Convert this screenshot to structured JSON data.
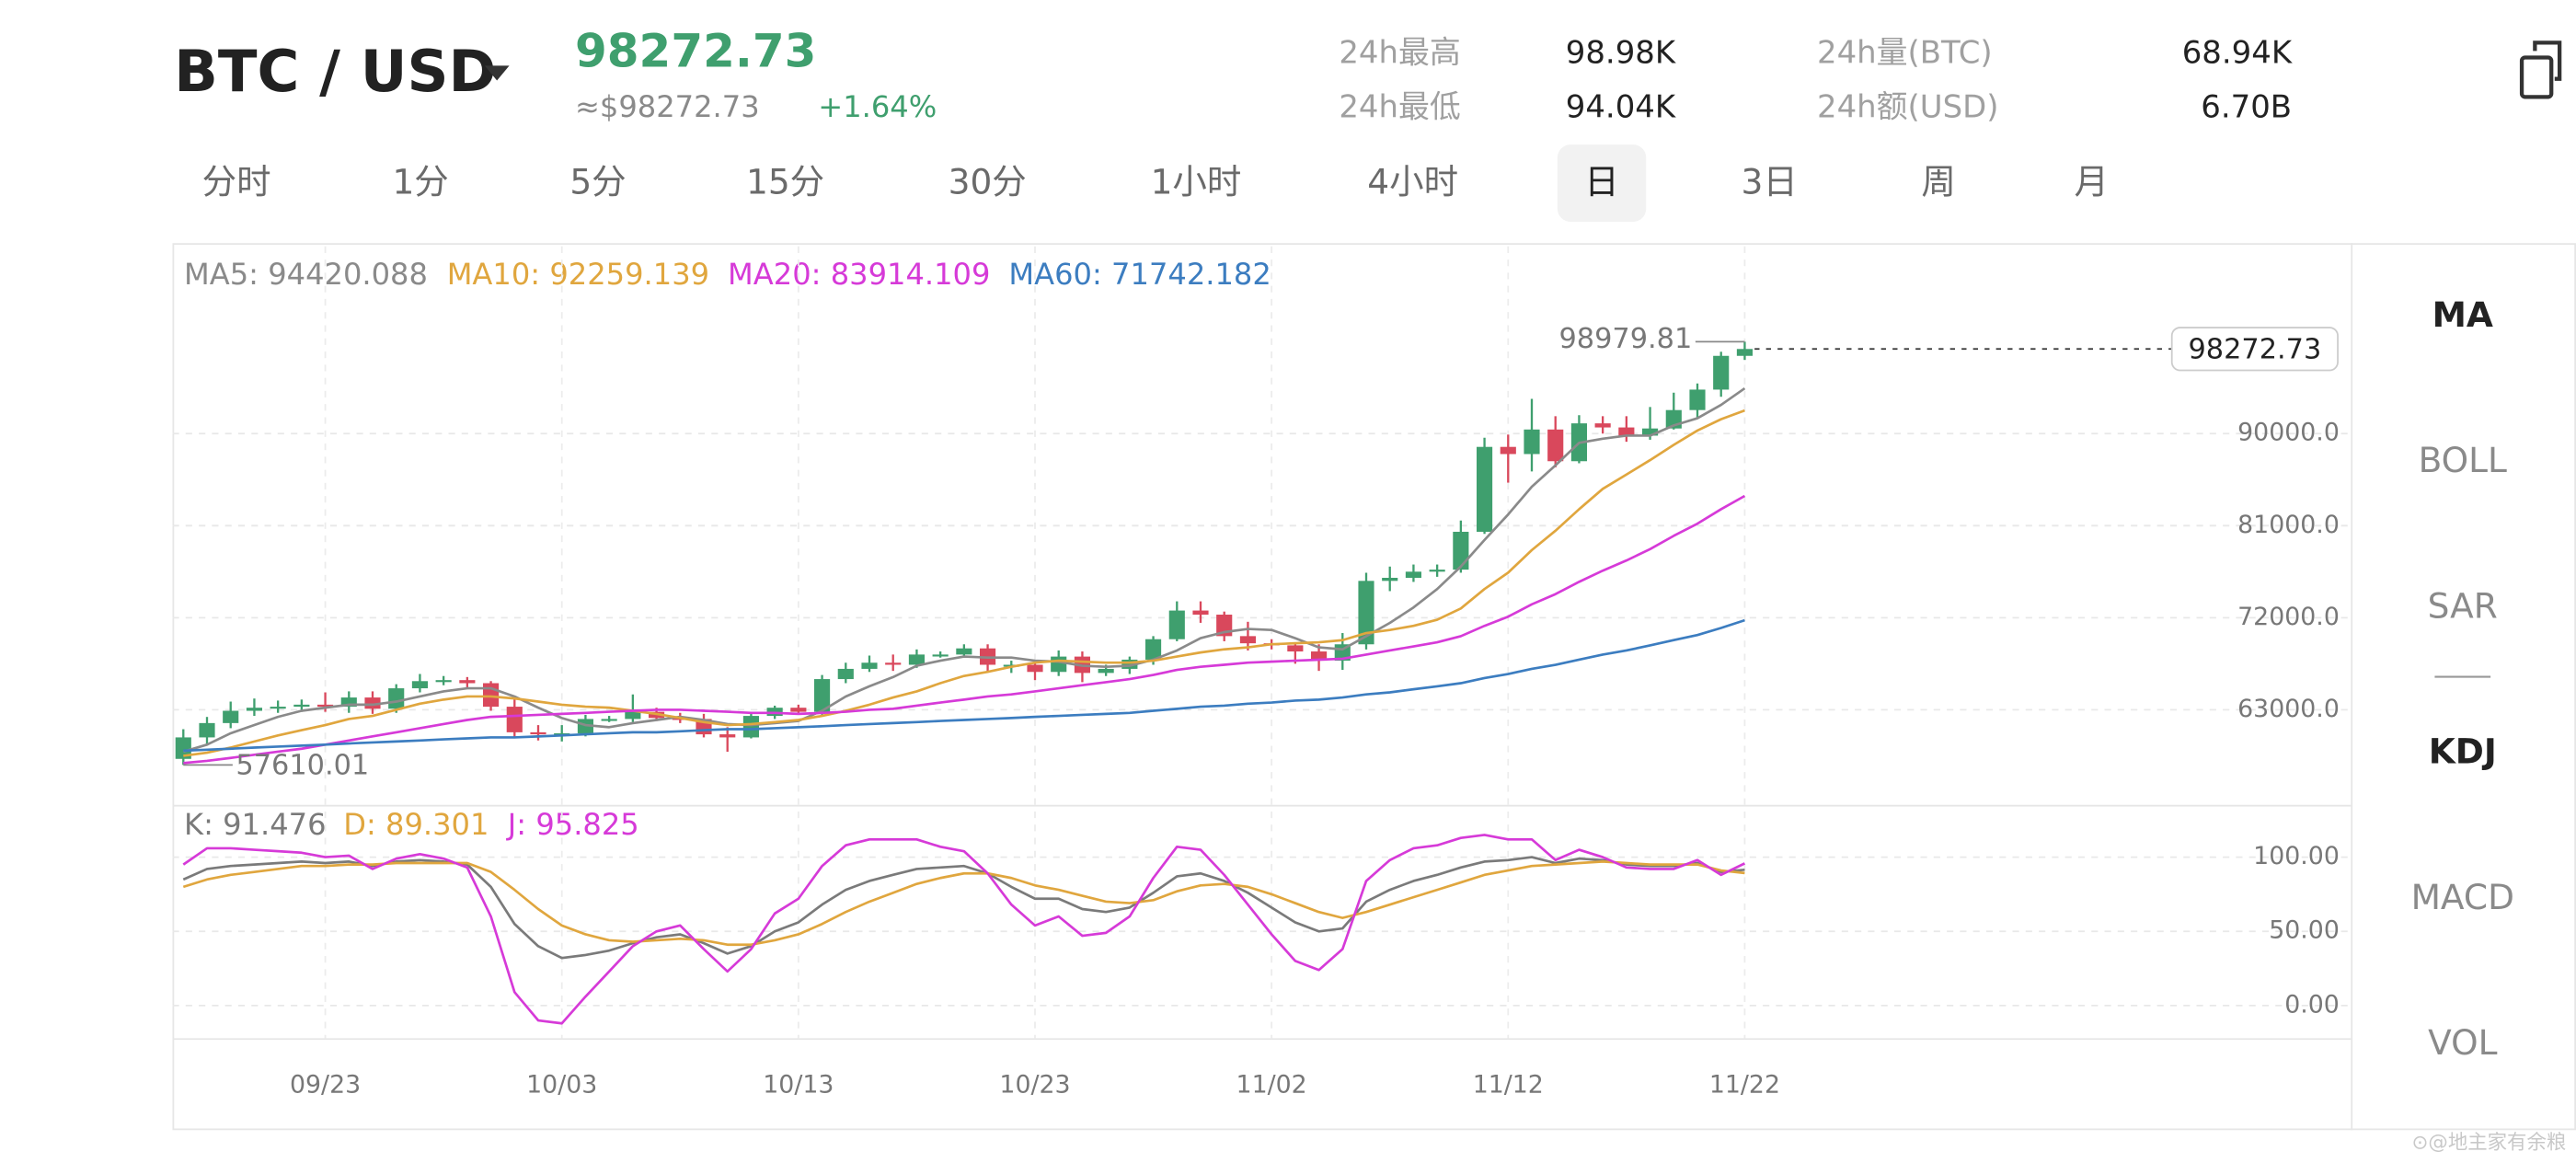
{
  "header": {
    "pair": "BTC / USD",
    "price": "98272.73",
    "price_usd": "≈$98272.73",
    "change": "+1.64%",
    "stats": [
      {
        "label": "24h最高",
        "value": "98.98K"
      },
      {
        "label": "24h最低",
        "value": "94.04K"
      },
      {
        "label": "24h量(BTC)",
        "value": "68.94K"
      },
      {
        "label": "24h额(USD)",
        "value": "6.70B"
      }
    ]
  },
  "tabs": [
    {
      "label": "分时"
    },
    {
      "label": "1分"
    },
    {
      "label": "5分"
    },
    {
      "label": "15分"
    },
    {
      "label": "30分"
    },
    {
      "label": "1小时"
    },
    {
      "label": "4小时"
    },
    {
      "label": "日",
      "selected": true
    },
    {
      "label": "3日"
    },
    {
      "label": "周"
    },
    {
      "label": "月"
    }
  ],
  "indicators": [
    {
      "label": "MA",
      "active": true
    },
    {
      "label": "BOLL"
    },
    {
      "label": "SAR"
    },
    {
      "label": "KDJ",
      "active": true
    },
    {
      "label": "MACD"
    },
    {
      "label": "VOL"
    }
  ],
  "watermark": "⊙@地主家有余粮",
  "chart_data": [
    {
      "type": "candlestick",
      "up_color": "#3f9f6e",
      "down_color": "#d9485c",
      "grid": true,
      "categories": [
        null,
        null,
        null,
        null,
        null,
        null,
        "09/23",
        null,
        null,
        null,
        null,
        null,
        null,
        null,
        null,
        null,
        "10/03",
        null,
        null,
        null,
        null,
        null,
        null,
        null,
        null,
        null,
        "10/13",
        null,
        null,
        null,
        null,
        null,
        null,
        null,
        null,
        null,
        "10/23",
        null,
        null,
        null,
        null,
        null,
        null,
        null,
        null,
        null,
        "11/02",
        null,
        null,
        null,
        null,
        null,
        null,
        null,
        null,
        null,
        "11/12",
        null,
        null,
        null,
        null,
        null,
        null,
        null,
        null,
        null,
        "11/22"
      ],
      "open": [
        58200,
        60300,
        61700,
        62900,
        63200,
        63300,
        63500,
        63300,
        64200,
        63100,
        65100,
        65800,
        65900,
        65600,
        63300,
        60800,
        60600,
        60700,
        62100,
        62100,
        62800,
        62200,
        62100,
        60600,
        60300,
        62400,
        63200,
        62800,
        66000,
        67000,
        67600,
        67400,
        68400,
        68400,
        69000,
        67400,
        67400,
        66700,
        68200,
        66600,
        67000,
        67900,
        69900,
        72700,
        72300,
        70200,
        69500,
        69300,
        68700,
        67800,
        69400,
        75600,
        75900,
        76500,
        76700,
        80400,
        88700,
        88000,
        90400,
        87300,
        91000,
        90600,
        89800,
        90500,
        92300,
        94300,
        97600
      ],
      "high": [
        61100,
        62300,
        63800,
        64100,
        63900,
        64000,
        64700,
        64800,
        64800,
        65500,
        66500,
        66300,
        66200,
        65800,
        64100,
        61500,
        61500,
        62500,
        62400,
        64500,
        63200,
        62700,
        62600,
        61300,
        62700,
        63400,
        63500,
        66400,
        67600,
        68300,
        68400,
        68900,
        68700,
        69400,
        69400,
        67800,
        67600,
        68800,
        68700,
        67400,
        68200,
        70200,
        73600,
        73600,
        72600,
        71600,
        69900,
        69500,
        69400,
        70500,
        76400,
        77000,
        77200,
        77200,
        81500,
        89600,
        89900,
        93400,
        91700,
        91800,
        91700,
        91700,
        92600,
        94000,
        94900,
        98000,
        98979.81
      ],
      "low": [
        57610.01,
        59500,
        61200,
        62400,
        62700,
        62800,
        62800,
        62700,
        62600,
        62700,
        64700,
        65400,
        65100,
        62900,
        60200,
        60000,
        59900,
        60400,
        61800,
        61800,
        61900,
        61700,
        60300,
        58900,
        60200,
        62100,
        62500,
        62500,
        65600,
        66700,
        66800,
        67100,
        68100,
        68200,
        66800,
        66600,
        65900,
        66300,
        65700,
        66300,
        66500,
        67400,
        69700,
        71500,
        69700,
        68800,
        68900,
        67500,
        66800,
        66900,
        68900,
        74600,
        75500,
        76000,
        76400,
        80200,
        85200,
        86300,
        86700,
        87100,
        90000,
        89200,
        89400,
        90400,
        91500,
        93600,
        97200
      ],
      "close": [
        60300,
        61700,
        62900,
        63200,
        63300,
        63500,
        63300,
        64200,
        63100,
        65100,
        65800,
        65900,
        65600,
        63300,
        60800,
        60600,
        60700,
        62100,
        62100,
        62800,
        62200,
        62100,
        60600,
        60300,
        62400,
        63200,
        62800,
        66000,
        67000,
        67600,
        67400,
        68400,
        68400,
        69000,
        67400,
        67400,
        66700,
        68200,
        66600,
        67000,
        67900,
        69900,
        72700,
        72300,
        70200,
        69500,
        69300,
        68700,
        67800,
        69400,
        75600,
        75900,
        76500,
        76700,
        80400,
        88700,
        88000,
        90400,
        87300,
        91000,
        90600,
        89800,
        90500,
        92300,
        94300,
        97600,
        98272.73
      ],
      "series": [
        {
          "name": "MA5",
          "color": "#8a8a8a",
          "values": [
            58900,
            59600,
            60700,
            61500,
            62300,
            62900,
            63200,
            63500,
            63500,
            63800,
            64300,
            64800,
            65100,
            65100,
            64300,
            63200,
            62200,
            61500,
            61300,
            61700,
            62000,
            62300,
            62000,
            61600,
            61500,
            61700,
            61900,
            62900,
            64300,
            65300,
            66200,
            67300,
            67800,
            68200,
            68100,
            68100,
            67800,
            67700,
            67300,
            67200,
            67300,
            67900,
            68800,
            70000,
            70600,
            70900,
            70800,
            70000,
            69100,
            68900,
            70200,
            71500,
            73000,
            74800,
            77000,
            79600,
            82100,
            84800,
            86900,
            89100,
            89500,
            89800,
            89800,
            90800,
            91500,
            92800,
            94420.088
          ]
        },
        {
          "name": "MA10",
          "color": "#e0a63e",
          "values": [
            58500,
            58800,
            59300,
            59900,
            60500,
            61000,
            61500,
            62100,
            62400,
            63000,
            63600,
            64000,
            64300,
            64300,
            64100,
            63800,
            63500,
            63300,
            63200,
            62900,
            62600,
            62200,
            61800,
            61500,
            61600,
            61800,
            62000,
            62400,
            62900,
            63500,
            64200,
            64800,
            65600,
            66300,
            66700,
            67200,
            67600,
            67800,
            67700,
            67600,
            67600,
            67800,
            68200,
            68600,
            68900,
            69100,
            69400,
            69500,
            69600,
            69800,
            70500,
            70800,
            71200,
            71800,
            72900,
            74800,
            76400,
            78600,
            80500,
            82600,
            84600,
            86000,
            87400,
            88900,
            90300,
            91400,
            92259.139
          ]
        },
        {
          "name": "MA20",
          "color": "#d63ad8",
          "values": [
            57800,
            58000,
            58300,
            58600,
            58900,
            59200,
            59600,
            60000,
            60400,
            60800,
            61200,
            61600,
            62000,
            62300,
            62400,
            62500,
            62600,
            62700,
            62800,
            62900,
            63000,
            63000,
            62900,
            62800,
            62700,
            62700,
            62600,
            62700,
            62800,
            63000,
            63100,
            63400,
            63700,
            64000,
            64300,
            64500,
            64800,
            65100,
            65400,
            65700,
            66000,
            66400,
            66900,
            67200,
            67400,
            67600,
            67700,
            67800,
            67900,
            68000,
            68400,
            68800,
            69200,
            69600,
            70200,
            71200,
            72100,
            73300,
            74300,
            75500,
            76600,
            77600,
            78700,
            80000,
            81200,
            82600,
            83914.109
          ]
        },
        {
          "name": "MA60",
          "color": "#3c7dc0",
          "values": [
            59000,
            59100,
            59200,
            59300,
            59400,
            59500,
            59600,
            59700,
            59800,
            59900,
            60000,
            60100,
            60200,
            60300,
            60300,
            60400,
            60500,
            60600,
            60700,
            60800,
            60800,
            60900,
            61000,
            61100,
            61100,
            61200,
            61300,
            61400,
            61500,
            61600,
            61700,
            61800,
            61900,
            62000,
            62100,
            62200,
            62300,
            62400,
            62500,
            62600,
            62700,
            62900,
            63100,
            63300,
            63400,
            63600,
            63700,
            63900,
            64000,
            64200,
            64500,
            64700,
            65000,
            65300,
            65600,
            66100,
            66500,
            67000,
            67400,
            67900,
            68400,
            68800,
            69300,
            69800,
            70300,
            71000,
            71742.182
          ]
        }
      ],
      "ylim": [
        53700,
        108300
      ],
      "yticks": [
        {
          "value": 63000,
          "label": "63000.0"
        },
        {
          "value": 72000,
          "label": "72000.0"
        },
        {
          "value": 81000,
          "label": "81000.0"
        },
        {
          "value": 90000,
          "label": "90000.0"
        }
      ]
    },
    {
      "type": "line",
      "grid": true,
      "series": [
        {
          "name": "K",
          "color": "#7a7a7a",
          "values": [
            85,
            92,
            94,
            95,
            96,
            97,
            96,
            97,
            94,
            97,
            98,
            97,
            95,
            80,
            55,
            40,
            32,
            34,
            37,
            42,
            46,
            48,
            42,
            35,
            40,
            50,
            56,
            68,
            78,
            84,
            88,
            92,
            93,
            94,
            89,
            80,
            72,
            72,
            65,
            63,
            66,
            76,
            87,
            89,
            84,
            76,
            66,
            56,
            50,
            52,
            70,
            78,
            84,
            88,
            93,
            97,
            98,
            100,
            96,
            99,
            98,
            95,
            94,
            94,
            96,
            90,
            91.476
          ]
        },
        {
          "name": "D",
          "color": "#e0a63e",
          "values": [
            80,
            85,
            88,
            90,
            92,
            94,
            94,
            95,
            95,
            96,
            96,
            96,
            96,
            90,
            78,
            65,
            54,
            48,
            44,
            43,
            44,
            45,
            44,
            41,
            41,
            44,
            48,
            55,
            63,
            70,
            76,
            82,
            86,
            89,
            89,
            86,
            81,
            78,
            74,
            70,
            69,
            71,
            77,
            81,
            82,
            80,
            75,
            69,
            63,
            59,
            63,
            68,
            73,
            78,
            83,
            88,
            91,
            94,
            95,
            96,
            97,
            96,
            95,
            95,
            95,
            91,
            89.301
          ]
        },
        {
          "name": "J",
          "color": "#d63ad8",
          "values": [
            95,
            106,
            106,
            105,
            104,
            103,
            100,
            101,
            92,
            99,
            102,
            99,
            93,
            60,
            9,
            -10,
            -12,
            6,
            23,
            40,
            50,
            54,
            38,
            23,
            38,
            62,
            72,
            94,
            108,
            112,
            112,
            112,
            107,
            104,
            89,
            68,
            54,
            60,
            47,
            49,
            60,
            86,
            107,
            105,
            88,
            68,
            48,
            30,
            24,
            38,
            84,
            98,
            106,
            108,
            113,
            115,
            112,
            112,
            98,
            105,
            100,
            93,
            92,
            92,
            98,
            88,
            95.825
          ]
        }
      ],
      "ylim": [
        -22,
        133
      ],
      "yticks": [
        {
          "value": 0,
          "label": "0.00"
        },
        {
          "value": 50,
          "label": "50.00"
        },
        {
          "value": 100,
          "label": "100.00"
        }
      ]
    }
  ]
}
